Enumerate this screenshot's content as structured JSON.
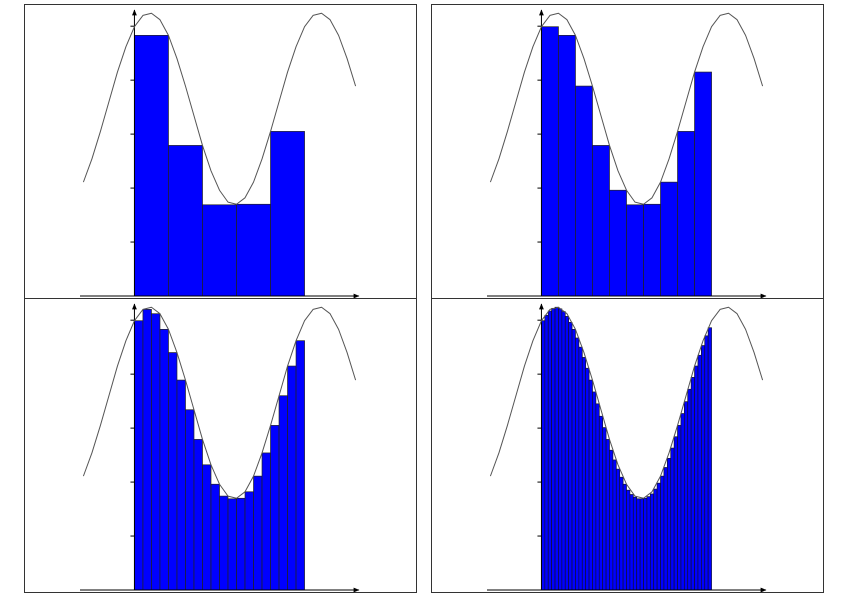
{
  "chart_data": [
    {
      "type": "histogram",
      "color": "#0000ff",
      "edge_color": "#222222",
      "bins": [
        0,
        1,
        2,
        3,
        4,
        5
      ],
      "values": [
        4.83,
        2.79,
        1.69,
        1.7,
        3.05
      ],
      "xlim": [
        -1.6,
        6.6
      ],
      "ylim": [
        0,
        5.3
      ],
      "yticks": [
        1,
        2,
        3,
        4,
        5
      ],
      "curve": {
        "color": "#555555",
        "x": [
          -1.5,
          -1.25,
          -1,
          -0.75,
          -0.5,
          -0.25,
          0,
          0.25,
          0.5,
          0.75,
          1,
          1.25,
          1.5,
          1.75,
          2,
          2.25,
          2.5,
          2.75,
          3,
          3.25,
          3.5,
          3.75,
          4,
          4.25,
          4.5,
          4.75,
          5,
          5.25,
          5.5,
          5.75,
          6,
          6.25,
          6.5
        ],
        "values": [
          2.11,
          2.54,
          3.05,
          3.6,
          4.15,
          4.62,
          4.99,
          5.2,
          5.24,
          5.12,
          4.83,
          4.4,
          3.89,
          3.34,
          2.79,
          2.32,
          1.96,
          1.74,
          1.7,
          1.82,
          2.11,
          2.54,
          3.05,
          3.6,
          4.15,
          4.62,
          4.99,
          5.2,
          5.24,
          5.12,
          4.83,
          4.4,
          3.89
        ]
      }
    },
    {
      "type": "histogram",
      "color": "#0000ff",
      "edge_color": "#222222",
      "bins": [
        0,
        0.5,
        1,
        1.5,
        2,
        2.5,
        3,
        3.5,
        4,
        4.5,
        5
      ],
      "values": [
        4.99,
        4.83,
        3.89,
        2.79,
        1.96,
        1.69,
        1.7,
        2.11,
        3.05,
        4.15
      ],
      "xlim": [
        -1.6,
        6.6
      ],
      "ylim": [
        0,
        5.3
      ],
      "yticks": [
        1,
        2,
        3,
        4,
        5
      ],
      "curve": {
        "color": "#555555",
        "x": [
          -1.5,
          -1.25,
          -1,
          -0.75,
          -0.5,
          -0.25,
          0,
          0.25,
          0.5,
          0.75,
          1,
          1.25,
          1.5,
          1.75,
          2,
          2.25,
          2.5,
          2.75,
          3,
          3.25,
          3.5,
          3.75,
          4,
          4.25,
          4.5,
          4.75,
          5,
          5.25,
          5.5,
          5.75,
          6,
          6.25,
          6.5
        ],
        "values": [
          2.11,
          2.54,
          3.05,
          3.6,
          4.15,
          4.62,
          4.99,
          5.2,
          5.24,
          5.12,
          4.83,
          4.4,
          3.89,
          3.34,
          2.79,
          2.32,
          1.96,
          1.74,
          1.7,
          1.82,
          2.11,
          2.54,
          3.05,
          3.6,
          4.15,
          4.62,
          4.99,
          5.2,
          5.24,
          5.12,
          4.83,
          4.4,
          3.89
        ]
      }
    },
    {
      "type": "histogram",
      "color": "#0000ff",
      "edge_color": "#222222",
      "bins": [
        0,
        0.25,
        0.5,
        0.75,
        1,
        1.25,
        1.5,
        1.75,
        2,
        2.25,
        2.5,
        2.75,
        3,
        3.25,
        3.5,
        3.75,
        4,
        4.25,
        4.5,
        4.75,
        5
      ],
      "values": [
        4.99,
        5.2,
        5.12,
        4.83,
        4.4,
        3.89,
        3.34,
        2.79,
        2.32,
        1.96,
        1.74,
        1.69,
        1.7,
        1.82,
        2.11,
        2.54,
        3.05,
        3.6,
        4.15,
        4.62
      ],
      "xlim": [
        -1.6,
        6.6
      ],
      "ylim": [
        0,
        5.3
      ],
      "yticks": [
        1,
        2,
        3,
        4,
        5
      ],
      "curve": {
        "color": "#555555",
        "x": [
          -1.5,
          -1.25,
          -1,
          -0.75,
          -0.5,
          -0.25,
          0,
          0.25,
          0.5,
          0.75,
          1,
          1.25,
          1.5,
          1.75,
          2,
          2.25,
          2.5,
          2.75,
          3,
          3.25,
          3.5,
          3.75,
          4,
          4.25,
          4.5,
          4.75,
          5,
          5.25,
          5.5,
          5.75,
          6,
          6.25,
          6.5
        ],
        "values": [
          2.11,
          2.54,
          3.05,
          3.6,
          4.15,
          4.62,
          4.99,
          5.2,
          5.24,
          5.12,
          4.83,
          4.4,
          3.89,
          3.34,
          2.79,
          2.32,
          1.96,
          1.74,
          1.7,
          1.82,
          2.11,
          2.54,
          3.05,
          3.6,
          4.15,
          4.62,
          4.99,
          5.2,
          5.24,
          5.12,
          4.83,
          4.4,
          3.89
        ]
      }
    },
    {
      "type": "histogram",
      "color": "#0000ff",
      "edge_color": "#111133",
      "bins": [
        0,
        0.1,
        0.2,
        0.3,
        0.4,
        0.5,
        0.6,
        0.7,
        0.8,
        0.9,
        1,
        1.1,
        1.2,
        1.3,
        1.4,
        1.5,
        1.6,
        1.7,
        1.8,
        1.9,
        2,
        2.1,
        2.2,
        2.3,
        2.4,
        2.5,
        2.6,
        2.7,
        2.8,
        2.9,
        3,
        3.1,
        3.2,
        3.3,
        3.4,
        3.5,
        3.6,
        3.7,
        3.8,
        3.9,
        4,
        4.1,
        4.2,
        4.3,
        4.4,
        4.5,
        4.6,
        4.7,
        4.8,
        4.9,
        5
      ],
      "values": [
        4.99,
        5.09,
        5.17,
        5.22,
        5.24,
        5.21,
        5.16,
        5.07,
        4.96,
        4.83,
        4.67,
        4.5,
        4.31,
        4.11,
        3.89,
        3.67,
        3.45,
        3.22,
        3.01,
        2.79,
        2.59,
        2.41,
        2.24,
        2.09,
        1.96,
        1.85,
        1.77,
        1.72,
        1.69,
        1.69,
        1.7,
        1.73,
        1.78,
        1.87,
        1.98,
        2.11,
        2.27,
        2.44,
        2.63,
        2.84,
        3.05,
        3.27,
        3.49,
        3.72,
        3.94,
        4.15,
        4.35,
        4.53,
        4.71,
        4.86
      ],
      "xlim": [
        -1.6,
        6.6
      ],
      "ylim": [
        0,
        5.3
      ],
      "yticks": [
        1,
        2,
        3,
        4,
        5
      ],
      "curve": {
        "color": "#555555",
        "x": [
          -1.5,
          -1.25,
          -1,
          -0.75,
          -0.5,
          -0.25,
          0,
          0.25,
          0.5,
          0.75,
          1,
          1.25,
          1.5,
          1.75,
          2,
          2.25,
          2.5,
          2.75,
          3,
          3.25,
          3.5,
          3.75,
          4,
          4.25,
          4.5,
          4.75,
          5,
          5.25,
          5.5,
          5.75,
          6,
          6.25,
          6.5
        ],
        "values": [
          2.11,
          2.54,
          3.05,
          3.6,
          4.15,
          4.62,
          4.99,
          5.2,
          5.24,
          5.12,
          4.83,
          4.4,
          3.89,
          3.34,
          2.79,
          2.32,
          1.96,
          1.74,
          1.7,
          1.82,
          2.11,
          2.54,
          3.05,
          3.6,
          4.15,
          4.62,
          4.99,
          5.2,
          5.24,
          5.12,
          4.83,
          4.4,
          3.89
        ]
      }
    }
  ]
}
